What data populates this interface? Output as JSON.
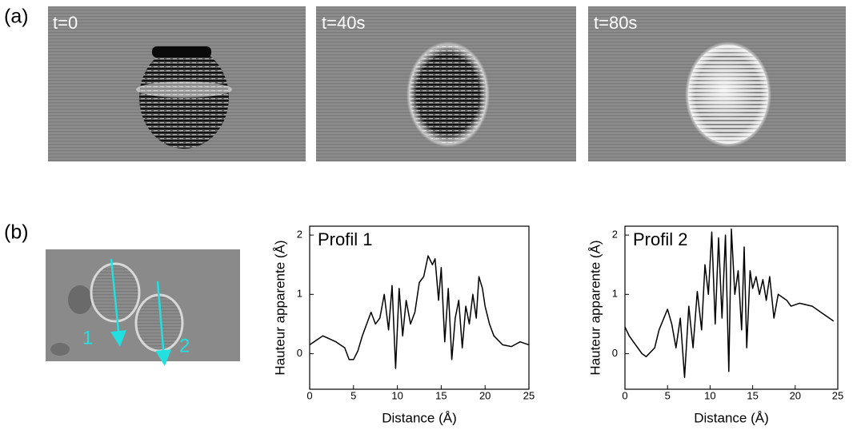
{
  "panel_a": {
    "label": "(a)",
    "frames": [
      "t=0",
      "t=40s",
      "t=80s"
    ]
  },
  "panel_b": {
    "label": "(b)",
    "markers": [
      "1",
      "2"
    ]
  },
  "chart_data": [
    {
      "type": "line",
      "title": "Profil 1",
      "x_label": "Distance (Å)",
      "y_label": "Hauteur apparente (Å)",
      "color": "#000000",
      "x": [
        0,
        1.5,
        3,
        4,
        4.5,
        5,
        5.5,
        6,
        7,
        7.5,
        8,
        8.5,
        9,
        9.4,
        9.8,
        10.2,
        10.6,
        11,
        11.5,
        12,
        12.5,
        13,
        13.5,
        14,
        14.3,
        14.7,
        15,
        15.4,
        15.8,
        16.2,
        16.6,
        17,
        17.4,
        17.8,
        18.2,
        18.6,
        19,
        19.3,
        19.7,
        20,
        20.5,
        21,
        22,
        23,
        24,
        25
      ],
      "values": [
        0.15,
        0.3,
        0.2,
        0.1,
        -0.1,
        -0.1,
        0.05,
        0.3,
        0.7,
        0.5,
        0.6,
        1.0,
        0.4,
        1.15,
        -0.25,
        1.1,
        0.3,
        0.9,
        0.5,
        0.7,
        1.2,
        1.3,
        1.65,
        1.5,
        1.6,
        0.9,
        1.45,
        0.2,
        1.1,
        -0.1,
        0.6,
        0.9,
        0.1,
        0.8,
        0.5,
        1.0,
        0.6,
        1.3,
        1.1,
        0.8,
        0.5,
        0.3,
        0.15,
        0.12,
        0.2,
        0.15
      ],
      "xlim": [
        0,
        25
      ],
      "ylim": [
        -0.6,
        2.15
      ],
      "xticks": [
        0,
        5,
        10,
        15,
        20,
        25
      ],
      "yticks": [
        0,
        1,
        2
      ]
    },
    {
      "type": "line",
      "title": "Profil 2",
      "x_label": "Distance (Å)",
      "y_label": "Hauteur apparente (Å)",
      "color": "#000000",
      "x": [
        0,
        0.5,
        1,
        2,
        2.5,
        3.5,
        4,
        5,
        5.5,
        6,
        6.5,
        7,
        7.5,
        8,
        8.5,
        9,
        9.4,
        9.8,
        10.2,
        10.6,
        11,
        11.4,
        11.8,
        12.2,
        12.5,
        12.9,
        13.3,
        13.7,
        14,
        14.3,
        14.7,
        15,
        15.4,
        15.8,
        16.2,
        16.6,
        17,
        17.5,
        18,
        19,
        19.5,
        20.5,
        22,
        23,
        24,
        24.5
      ],
      "values": [
        0.45,
        0.3,
        0.2,
        0.0,
        -0.05,
        0.1,
        0.4,
        0.75,
        0.5,
        0.1,
        0.6,
        -0.4,
        0.8,
        0.1,
        1.05,
        0.4,
        1.5,
        1.0,
        2.05,
        0.5,
        1.95,
        0.6,
        2.0,
        -0.3,
        2.1,
        1.0,
        1.4,
        0.4,
        1.8,
        0.1,
        1.4,
        1.1,
        1.3,
        1.0,
        1.25,
        0.9,
        1.3,
        0.6,
        1.0,
        0.9,
        0.8,
        0.85,
        0.8,
        0.7,
        0.6,
        0.55
      ],
      "xlim": [
        0,
        25
      ],
      "ylim": [
        -0.6,
        2.15
      ],
      "xticks": [
        0,
        5,
        10,
        15,
        20,
        25
      ],
      "yticks": [
        0,
        1,
        2
      ]
    }
  ]
}
